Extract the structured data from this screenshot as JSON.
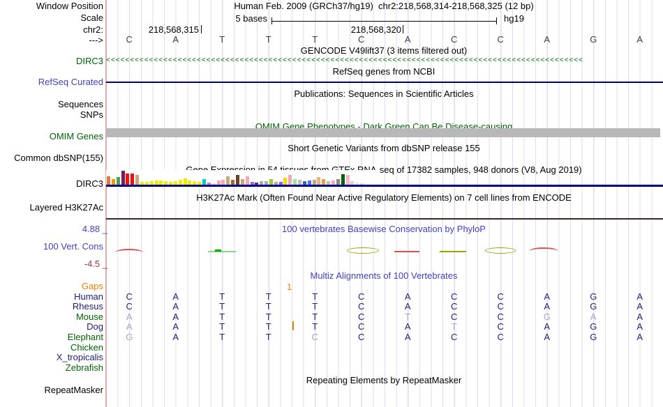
{
  "header": {
    "assembly": "Human Feb. 2009 (GRCh37/hg19)",
    "position": "chr2:218,568,314-218,568,325 (12 bp)",
    "scale_value": "5 bases",
    "genome": "hg19",
    "coord_left": "218,568,315",
    "coord_right": "218,568,320"
  },
  "left_labels": {
    "window_position": "Window Position",
    "scale": "Scale",
    "chromosome": "chr2:",
    "strand": "--->",
    "dirc3_gencode": "DIRC3",
    "refseq_curated": "RefSeq Curated",
    "sequences": "Sequences",
    "snps": "SNPs",
    "omim_genes": "OMIM Genes",
    "common_dbsnp": "Common dbSNP(155)",
    "dirc3_gtex": "DIRC3",
    "layered_h3k27ac": "Layered H3K27Ac",
    "cons_max": "4.88 _",
    "cons_label": "100 Vert. Cons",
    "cons_min": "-4.5 _",
    "gaps": "Gaps",
    "repeatmasker": "RepeatMasker"
  },
  "track_titles": {
    "gencode": "GENCODE V49lift37 (3 items filtered out)",
    "refseq": "RefSeq genes from NCBI",
    "publications": "Publications: Sequences in Scientific Articles",
    "omim": "OMIM Gene Phenotypes - Dark Green Can Be Disease-causing",
    "dbsnp": "Short Genetic Variants from dbSNP release 155",
    "gtex": "Gene Expression in 54 tissues from GTEx RNA-seq of 17382 samples, 948 donors (V8, Aug 2019)",
    "h3k27ac": "H3K27Ac Mark (Often Found Near Active Regulatory Elements) on 7 cell lines from ENCODE",
    "phylop": "100 vertebrates Basewise Conservation by PhyloP",
    "multiz": "Multiz Alignments of 100 Vertebrates",
    "repeatmasker": "Repeating Elements by RepeatMasker"
  },
  "sequence": {
    "bases": [
      "C",
      "A",
      "T",
      "T",
      "T",
      "C",
      "A",
      "C",
      "C",
      "A",
      "G",
      "A"
    ]
  },
  "dirc3_track": {
    "gene": "DIRC3",
    "strand": "reverse",
    "chevron_char": "<"
  },
  "gtex": {
    "gene": "DIRC3",
    "tissue_count": 54,
    "bars": [
      {
        "c": "#E07B39",
        "h": 12
      },
      {
        "c": "#EE9A00",
        "h": 8
      },
      {
        "c": "#4C9E63",
        "h": 11
      },
      {
        "c": "#7A1C52",
        "h": 20
      },
      {
        "c": "#EE1111",
        "h": 16
      },
      {
        "c": "#EE1111",
        "h": 16
      },
      {
        "c": "#C8A878",
        "h": 14
      },
      {
        "c": "#EDED00",
        "h": 4
      },
      {
        "c": "#EDED00",
        "h": 4
      },
      {
        "c": "#EDED00",
        "h": 5
      },
      {
        "c": "#EDED00",
        "h": 6
      },
      {
        "c": "#EDED00",
        "h": 6
      },
      {
        "c": "#EDED00",
        "h": 5
      },
      {
        "c": "#EDED00",
        "h": 4
      },
      {
        "c": "#EDED00",
        "h": 5
      },
      {
        "c": "#EDED00",
        "h": 7
      },
      {
        "c": "#EDED00",
        "h": 9
      },
      {
        "c": "#EDED00",
        "h": 6
      },
      {
        "c": "#EDED00",
        "h": 5
      },
      {
        "c": "#EDED00",
        "h": 4
      },
      {
        "c": "#00CDCD",
        "h": 8
      },
      {
        "c": "#C87EC8",
        "h": 3
      },
      {
        "c": "#D8D8D8",
        "h": 2
      },
      {
        "c": "#F4A7B9",
        "h": 6
      },
      {
        "c": "#F4A7B9",
        "h": 7
      },
      {
        "c": "#C8A878",
        "h": 12
      },
      {
        "c": "#9C6B30",
        "h": 7
      },
      {
        "c": "#6B4226",
        "h": 14
      },
      {
        "c": "#C8A878",
        "h": 8
      },
      {
        "c": "#F4A7B9",
        "h": 12
      },
      {
        "c": "#9B6BB8",
        "h": 4
      },
      {
        "c": "#5A2D82",
        "h": 3
      },
      {
        "c": "#ABABAB",
        "h": 5
      },
      {
        "c": "#ABABAB",
        "h": 5
      },
      {
        "c": "#9ACD32",
        "h": 8
      },
      {
        "c": "#ABABAB",
        "h": 4
      },
      {
        "c": "#7B68EE",
        "h": 4
      },
      {
        "c": "#FFD700",
        "h": 10
      },
      {
        "c": "#F4A7B9",
        "h": 14
      },
      {
        "c": "#98E698",
        "h": 8
      },
      {
        "c": "#BDBDBD",
        "h": 7
      },
      {
        "c": "#3A5FCD",
        "h": 5
      },
      {
        "c": "#4876FF",
        "h": 6
      },
      {
        "c": "#C8A878",
        "h": 7
      },
      {
        "c": "#DEB887",
        "h": 11
      },
      {
        "c": "#EE9A49",
        "h": 8
      },
      {
        "c": "#BDBDBD",
        "h": 5
      },
      {
        "c": "#F4A7B9",
        "h": 6
      },
      {
        "c": "#8B8B83",
        "h": 8
      },
      {
        "c": "#006400",
        "h": 15
      },
      {
        "c": "#F4B8C8",
        "h": 14
      },
      {
        "c": "#F4C8D0",
        "h": 5
      },
      {
        "c": "#E8E8E8",
        "h": 3
      },
      {
        "c": "#D8D8D8",
        "h": 2
      }
    ]
  },
  "conservation": {
    "max": "4.88",
    "min": "-4.5"
  },
  "alignment": {
    "gap_value": "1",
    "species": [
      {
        "label": "Human",
        "label_color": "navy",
        "bases": [
          "C",
          "A",
          "T",
          "T",
          "T",
          "C",
          "A",
          "C",
          "C",
          "A",
          "G",
          "A"
        ],
        "gray": []
      },
      {
        "label": "Rhesus",
        "label_color": "navy",
        "bases": [
          "C",
          "A",
          "T",
          "T",
          "T",
          "C",
          "A",
          "C",
          "C",
          "A",
          "G",
          "A"
        ],
        "gray": []
      },
      {
        "label": "Mouse",
        "label_color": "green",
        "bases": [
          "A",
          "A",
          "T",
          "T",
          "T",
          "C",
          "T",
          "C",
          "C",
          "G",
          "A",
          "A"
        ],
        "gray": [
          0,
          6,
          9,
          10
        ]
      },
      {
        "label": "Dog",
        "label_color": "navy",
        "bases": [
          "A",
          "A",
          "T",
          "T",
          "T",
          "C",
          "A",
          "T",
          "C",
          "A",
          "G",
          "A"
        ],
        "gray": [
          0,
          7
        ]
      },
      {
        "label": "Elephant",
        "label_color": "green",
        "bases": [
          "G",
          "A",
          "T",
          "T",
          "C",
          "C",
          "A",
          "C",
          "C",
          "A",
          "G",
          "A"
        ],
        "gray": [
          0,
          4
        ]
      },
      {
        "label": "Chicken",
        "label_color": "green",
        "bases": [],
        "gray": []
      },
      {
        "label": "X_tropicalis",
        "label_color": "navy",
        "bases": [],
        "gray": []
      },
      {
        "label": "Zebrafish",
        "label_color": "green",
        "bases": [],
        "gray": []
      }
    ]
  },
  "colors": {
    "track_green": "#006400",
    "track_navy": "#000080",
    "label_blue": "#4040c8",
    "label_orange": "#f08000",
    "label_maroon": "#993333",
    "omim_bar_gray": "#b8b8b8",
    "grid_line": "#dcdceb",
    "separator_salmon": "#f2a5a5"
  }
}
